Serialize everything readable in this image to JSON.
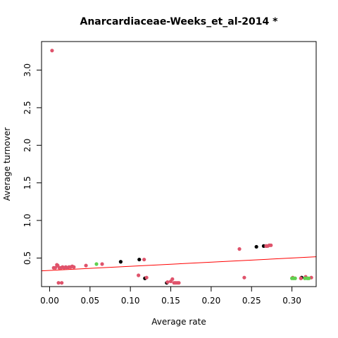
{
  "chart_data": {
    "type": "scatter",
    "title": "Anarcardiaceae-Weeks_et_al-2014 *",
    "xlabel": "Average rate",
    "ylabel": "Average turnover",
    "xlim": [
      -0.01,
      0.33
    ],
    "ylim": [
      0.12,
      3.38
    ],
    "xticks": [
      0.0,
      0.05,
      0.1,
      0.15,
      0.2,
      0.25,
      0.3
    ],
    "xtick_labels": [
      "0.00",
      "0.05",
      "0.10",
      "0.15",
      "0.20",
      "0.25",
      "0.30"
    ],
    "yticks": [
      0.5,
      1.0,
      1.5,
      2.0,
      2.5,
      3.0
    ],
    "ytick_labels": [
      "0.5",
      "1.0",
      "1.5",
      "2.0",
      "2.5",
      "3.0"
    ],
    "grid": false,
    "legend": "none",
    "colors": {
      "black": "#000000",
      "red": "#DF536B",
      "green": "#61D04F",
      "line": "#FF0000"
    },
    "series": [
      {
        "color": "black",
        "points": [
          [
            0.088,
            0.45
          ],
          [
            0.111,
            0.48
          ],
          [
            0.118,
            0.23
          ],
          [
            0.145,
            0.17
          ],
          [
            0.256,
            0.65
          ],
          [
            0.265,
            0.66
          ],
          [
            0.268,
            0.66
          ],
          [
            0.312,
            0.24
          ]
        ]
      },
      {
        "color": "red",
        "points": [
          [
            0.003,
            3.26
          ],
          [
            0.005,
            0.37
          ],
          [
            0.007,
            0.37
          ],
          [
            0.009,
            0.41
          ],
          [
            0.01,
            0.4
          ],
          [
            0.011,
            0.17
          ],
          [
            0.012,
            0.37
          ],
          [
            0.014,
            0.37
          ],
          [
            0.015,
            0.17
          ],
          [
            0.016,
            0.38
          ],
          [
            0.018,
            0.37
          ],
          [
            0.02,
            0.38
          ],
          [
            0.022,
            0.37
          ],
          [
            0.024,
            0.38
          ],
          [
            0.026,
            0.38
          ],
          [
            0.028,
            0.39
          ],
          [
            0.03,
            0.38
          ],
          [
            0.045,
            0.4
          ],
          [
            0.065,
            0.42
          ],
          [
            0.11,
            0.27
          ],
          [
            0.117,
            0.48
          ],
          [
            0.12,
            0.24
          ],
          [
            0.146,
            0.18
          ],
          [
            0.15,
            0.19
          ],
          [
            0.152,
            0.22
          ],
          [
            0.154,
            0.17
          ],
          [
            0.156,
            0.17
          ],
          [
            0.158,
            0.17
          ],
          [
            0.16,
            0.17
          ],
          [
            0.235,
            0.62
          ],
          [
            0.241,
            0.24
          ],
          [
            0.268,
            0.66
          ],
          [
            0.27,
            0.66
          ],
          [
            0.272,
            0.67
          ],
          [
            0.274,
            0.67
          ],
          [
            0.301,
            0.24
          ],
          [
            0.311,
            0.23
          ],
          [
            0.317,
            0.25
          ],
          [
            0.324,
            0.24
          ]
        ]
      },
      {
        "color": "green",
        "points": [
          [
            0.058,
            0.42
          ],
          [
            0.3,
            0.23
          ],
          [
            0.302,
            0.23
          ],
          [
            0.304,
            0.23
          ],
          [
            0.316,
            0.23
          ],
          [
            0.319,
            0.23
          ],
          [
            0.321,
            0.23
          ]
        ]
      }
    ],
    "trendline": {
      "color": "line",
      "intercept": 0.335,
      "slope": 0.55
    }
  }
}
